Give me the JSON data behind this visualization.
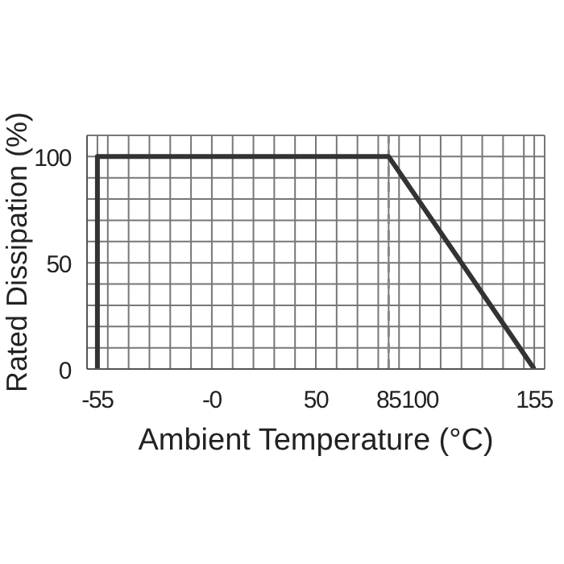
{
  "chart_data": {
    "type": "line",
    "xlabel": "Ambient Temperature (°C)",
    "ylabel": "Rated Dissipation (%)",
    "series": [
      {
        "color": "#333333",
        "x": [
          -55,
          -55,
          85,
          155
        ],
        "values": [
          0,
          100,
          100,
          0
        ]
      }
    ],
    "xlim": [
      -60,
      160
    ],
    "xticks": [
      {
        "value": -60,
        "label": null
      },
      -55,
      {
        "value": -50,
        "label": null
      },
      {
        "value": -40,
        "label": null
      },
      {
        "value": -30,
        "label": null
      },
      {
        "value": -20,
        "label": null
      },
      {
        "value": -10,
        "label": null
      },
      {
        "value": 0,
        "label": "-0"
      },
      {
        "value": 10,
        "label": null
      },
      {
        "value": 20,
        "label": null
      },
      {
        "value": 30,
        "label": null
      },
      {
        "value": 40,
        "label": null
      },
      50,
      {
        "value": 60,
        "label": null
      },
      {
        "value": 70,
        "label": null
      },
      {
        "value": 80,
        "label": null
      },
      85,
      {
        "value": 90,
        "label": null
      },
      100,
      {
        "value": 110,
        "label": null
      },
      {
        "value": 120,
        "label": null
      },
      {
        "value": 130,
        "label": null
      },
      {
        "value": 140,
        "label": null
      },
      {
        "value": 150,
        "label": null
      },
      155,
      {
        "value": 160,
        "label": null
      }
    ],
    "ylim": [
      0,
      110
    ],
    "yticks": [
      0,
      {
        "value": 10,
        "label": null
      },
      {
        "value": 20,
        "label": null
      },
      {
        "value": 30,
        "label": null
      },
      {
        "value": 40,
        "label": null
      },
      50,
      {
        "value": 60,
        "label": null
      },
      {
        "value": 70,
        "label": null
      },
      {
        "value": 80,
        "label": null
      },
      {
        "value": 90,
        "label": null
      },
      100,
      {
        "value": 110,
        "label": null
      }
    ],
    "ref_lines": [
      {
        "axis": "x",
        "value": 85,
        "color": "#888888",
        "line_style": "dashed"
      }
    ],
    "grid": true,
    "legend": false,
    "marker": "none",
    "line_style": "solid"
  }
}
